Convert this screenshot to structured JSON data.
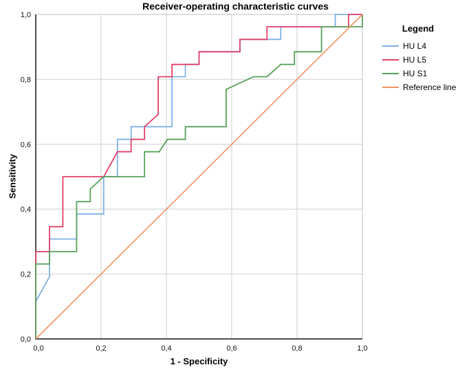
{
  "chart": {
    "title": "Receiver-operating characteristic curves",
    "xlabel": "1 - Specificity",
    "ylabel": "Sensitivity"
  },
  "legend": {
    "title": "Legend"
  },
  "chart_data": {
    "type": "line",
    "subtype": "roc-step-curves",
    "title": "Receiver-operating characteristic curves",
    "xlabel": "1 - Specificity",
    "ylabel": "Sensitivity",
    "xlim": [
      0,
      1
    ],
    "ylim": [
      0,
      1
    ],
    "grid": true,
    "legend_position": "right",
    "x_ticks": {
      "values": [
        0,
        0.2,
        0.4,
        0.6,
        0.8,
        1.0
      ],
      "labels": [
        "0,0",
        "0,2",
        "0,4",
        "0,6",
        "0,8",
        "1,0"
      ]
    },
    "y_ticks": {
      "values": [
        0,
        0.2,
        0.4,
        0.6,
        0.8,
        1.0
      ],
      "labels": [
        "0,0",
        "0,2",
        "0,4",
        "0,6",
        "0,8",
        "1,0"
      ]
    },
    "colors": {
      "grid": "#d9d9d9",
      "frame": "#c9c9c9",
      "axis": "#4d4d4d"
    },
    "series": [
      {
        "name": "HU L4",
        "color": "#7fb0e3",
        "width": 1.8,
        "points": [
          [
            0,
            0
          ],
          [
            0,
            0.115
          ],
          [
            0.042,
            0.192
          ],
          [
            0.042,
            0.308
          ],
          [
            0.125,
            0.308
          ],
          [
            0.125,
            0.385
          ],
          [
            0.208,
            0.385
          ],
          [
            0.208,
            0.5
          ],
          [
            0.25,
            0.5
          ],
          [
            0.25,
            0.615
          ],
          [
            0.292,
            0.615
          ],
          [
            0.292,
            0.654
          ],
          [
            0.417,
            0.654
          ],
          [
            0.417,
            0.808
          ],
          [
            0.458,
            0.808
          ],
          [
            0.458,
            0.846
          ],
          [
            0.5,
            0.846
          ],
          [
            0.5,
            0.885
          ],
          [
            0.625,
            0.885
          ],
          [
            0.625,
            0.923
          ],
          [
            0.75,
            0.923
          ],
          [
            0.75,
            0.962
          ],
          [
            0.917,
            0.962
          ],
          [
            0.917,
            1
          ],
          [
            1,
            1
          ]
        ]
      },
      {
        "name": "HU L5",
        "color": "#e04169",
        "width": 1.8,
        "points": [
          [
            0,
            0
          ],
          [
            0,
            0.269
          ],
          [
            0.042,
            0.269
          ],
          [
            0.042,
            0.346
          ],
          [
            0.083,
            0.346
          ],
          [
            0.083,
            0.5
          ],
          [
            0.208,
            0.5
          ],
          [
            0.25,
            0.577
          ],
          [
            0.292,
            0.577
          ],
          [
            0.292,
            0.615
          ],
          [
            0.333,
            0.615
          ],
          [
            0.333,
            0.654
          ],
          [
            0.375,
            0.692
          ],
          [
            0.375,
            0.808
          ],
          [
            0.417,
            0.808
          ],
          [
            0.417,
            0.846
          ],
          [
            0.5,
            0.846
          ],
          [
            0.5,
            0.885
          ],
          [
            0.625,
            0.885
          ],
          [
            0.625,
            0.923
          ],
          [
            0.708,
            0.923
          ],
          [
            0.708,
            0.962
          ],
          [
            0.958,
            0.962
          ],
          [
            0.958,
            1
          ],
          [
            1,
            1
          ]
        ]
      },
      {
        "name": "HU S1",
        "color": "#57a159",
        "width": 1.8,
        "points": [
          [
            0,
            0
          ],
          [
            0,
            0.231
          ],
          [
            0.042,
            0.231
          ],
          [
            0.042,
            0.269
          ],
          [
            0.047,
            0.269
          ],
          [
            0.047,
            0.269
          ],
          [
            0.125,
            0.269
          ],
          [
            0.125,
            0.423
          ],
          [
            0.167,
            0.423
          ],
          [
            0.167,
            0.462
          ],
          [
            0.208,
            0.5
          ],
          [
            0.333,
            0.5
          ],
          [
            0.333,
            0.577
          ],
          [
            0.378,
            0.577
          ],
          [
            0.403,
            0.615
          ],
          [
            0.458,
            0.615
          ],
          [
            0.458,
            0.654
          ],
          [
            0.583,
            0.654
          ],
          [
            0.583,
            0.769
          ],
          [
            0.667,
            0.808
          ],
          [
            0.708,
            0.808
          ],
          [
            0.75,
            0.846
          ],
          [
            0.792,
            0.846
          ],
          [
            0.792,
            0.885
          ],
          [
            0.875,
            0.885
          ],
          [
            0.875,
            0.962
          ],
          [
            1,
            0.962
          ],
          [
            1,
            1
          ]
        ]
      },
      {
        "name": "Reference line",
        "color": "#f2925f",
        "width": 1.6,
        "points": [
          [
            0,
            0
          ],
          [
            1,
            1
          ]
        ]
      }
    ]
  }
}
